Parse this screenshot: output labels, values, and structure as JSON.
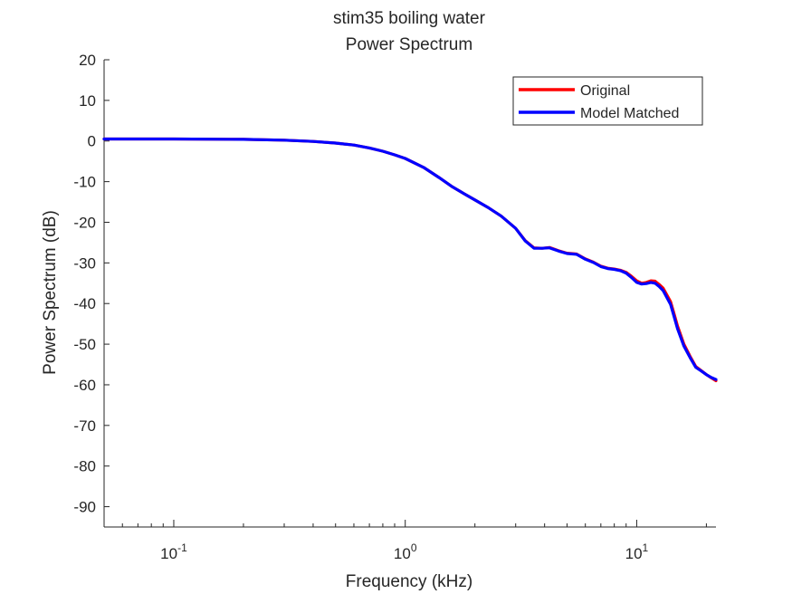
{
  "chart_data": {
    "type": "line",
    "title": [
      "stim35 boiling water",
      "Power Spectrum"
    ],
    "xlabel": "Frequency (kHz)",
    "ylabel": "Power Spectrum (dB)",
    "xscale": "log",
    "xlim": [
      0.05,
      22
    ],
    "ylim": [
      -95,
      20
    ],
    "yticks": [
      20,
      10,
      0,
      -10,
      -20,
      -30,
      -40,
      -50,
      -60,
      -70,
      -80,
      -90
    ],
    "xticks": [
      {
        "value": 0.1,
        "base": "10",
        "exp": "-1"
      },
      {
        "value": 1,
        "base": "10",
        "exp": "0"
      },
      {
        "value": 10,
        "base": "10",
        "exp": "1"
      }
    ],
    "grid": false,
    "legend_position": "top-right",
    "series": [
      {
        "name": "Original",
        "color": "#ff0000",
        "x": [
          0.05,
          0.1,
          0.2,
          0.3,
          0.4,
          0.5,
          0.6,
          0.7,
          0.8,
          0.9,
          1.0,
          1.2,
          1.4,
          1.6,
          1.8,
          2.0,
          2.3,
          2.6,
          3.0,
          3.3,
          3.6,
          3.9,
          4.2,
          4.6,
          5.0,
          5.5,
          6.0,
          6.5,
          7.0,
          7.5,
          8.0,
          8.5,
          9.0,
          9.5,
          10.0,
          10.5,
          11.0,
          11.5,
          12.0,
          12.5,
          13.0,
          14.0,
          14.5,
          15.0,
          16.0,
          17.0,
          18.0,
          19.0,
          20.0,
          21.0,
          22.0
        ],
        "y": [
          0.5,
          0.5,
          0.4,
          0.2,
          -0.1,
          -0.5,
          -1.0,
          -1.7,
          -2.5,
          -3.4,
          -4.3,
          -6.5,
          -9.0,
          -11.3,
          -13.0,
          -14.5,
          -16.5,
          -18.5,
          -21.5,
          -24.5,
          -26.3,
          -26.4,
          -26.2,
          -27.0,
          -27.6,
          -27.8,
          -29.0,
          -29.8,
          -30.8,
          -31.3,
          -31.5,
          -31.8,
          -32.3,
          -33.3,
          -34.4,
          -35.0,
          -34.8,
          -34.4,
          -34.5,
          -35.3,
          -36.2,
          -39.5,
          -42.5,
          -45.5,
          -50.0,
          -53.0,
          -55.5,
          -56.5,
          -57.5,
          -58.3,
          -59.0
        ]
      },
      {
        "name": "Model Matched",
        "color": "#0000ff",
        "x": [
          0.05,
          0.1,
          0.2,
          0.3,
          0.4,
          0.5,
          0.6,
          0.7,
          0.8,
          0.9,
          1.0,
          1.2,
          1.4,
          1.6,
          1.8,
          2.0,
          2.3,
          2.6,
          3.0,
          3.3,
          3.6,
          3.9,
          4.2,
          4.6,
          5.0,
          5.5,
          6.0,
          6.5,
          7.0,
          7.5,
          8.0,
          8.5,
          9.0,
          9.5,
          10.0,
          10.5,
          11.0,
          11.5,
          12.0,
          12.5,
          13.0,
          14.0,
          14.5,
          15.0,
          16.0,
          17.0,
          18.0,
          19.0,
          20.0,
          21.0,
          22.0
        ],
        "y": [
          0.5,
          0.5,
          0.4,
          0.2,
          -0.1,
          -0.5,
          -1.0,
          -1.7,
          -2.5,
          -3.4,
          -4.3,
          -6.5,
          -9.0,
          -11.3,
          -13.0,
          -14.5,
          -16.5,
          -18.5,
          -21.5,
          -24.6,
          -26.4,
          -26.4,
          -26.3,
          -27.1,
          -27.7,
          -27.9,
          -29.1,
          -29.9,
          -30.9,
          -31.4,
          -31.6,
          -31.9,
          -32.5,
          -33.6,
          -34.8,
          -35.2,
          -35.1,
          -34.8,
          -35.0,
          -35.8,
          -36.8,
          -40.2,
          -43.2,
          -46.2,
          -50.5,
          -53.3,
          -55.7,
          -56.6,
          -57.5,
          -58.2,
          -58.7
        ]
      }
    ]
  }
}
